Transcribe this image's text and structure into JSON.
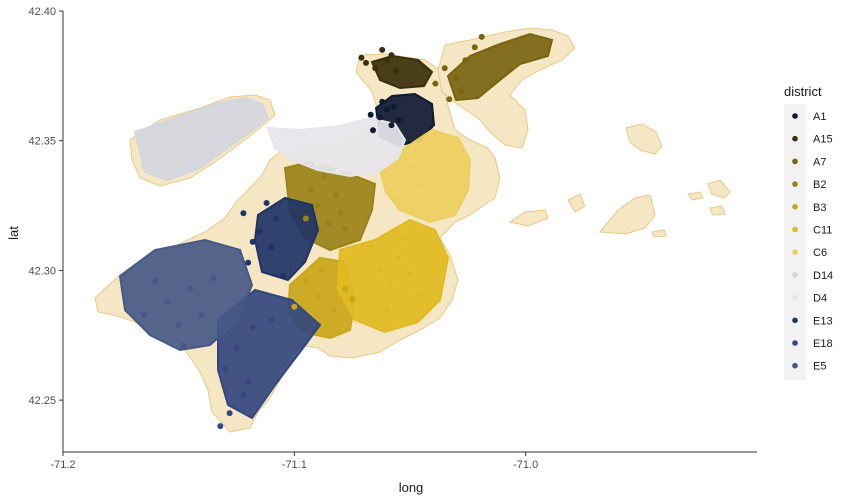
{
  "chart_data": {
    "type": "scatter",
    "title": "",
    "xlabel": "long",
    "ylabel": "lat",
    "xlim": [
      -71.2,
      -70.9
    ],
    "ylim": [
      42.23,
      42.4
    ],
    "x_ticks": [
      -71.2,
      -71.1,
      -71.0
    ],
    "x_tick_labels": [
      "-71.2",
      "-71.1",
      "-71.0"
    ],
    "y_ticks": [
      42.25,
      42.3,
      42.35,
      42.4
    ],
    "y_tick_labels": [
      "42.25",
      "42.30",
      "42.35",
      "42.40"
    ],
    "grid": false,
    "legend_position": "right",
    "legend_title": "district",
    "background_layer": {
      "fill": "#f5e6c4",
      "stroke": "#e8c98a"
    },
    "series": [
      {
        "name": "A1",
        "color": "#0e1a33",
        "points": [
          [
            -71.063,
            42.359
          ],
          [
            -71.06,
            42.362
          ],
          [
            -71.058,
            42.356
          ],
          [
            -71.066,
            42.354
          ],
          [
            -71.055,
            42.358
          ],
          [
            -71.062,
            42.365
          ],
          [
            -71.057,
            42.363
          ],
          [
            -71.067,
            42.36
          ]
        ]
      },
      {
        "name": "A15",
        "color": "#3a2f0b",
        "points": [
          [
            -71.065,
            42.378
          ],
          [
            -71.06,
            42.381
          ],
          [
            -71.056,
            42.377
          ],
          [
            -71.069,
            42.38
          ],
          [
            -71.062,
            42.385
          ],
          [
            -71.058,
            42.383
          ],
          [
            -71.071,
            42.382
          ]
        ]
      },
      {
        "name": "A7",
        "color": "#7a6410",
        "points": [
          [
            -71.035,
            42.378
          ],
          [
            -71.03,
            42.374
          ],
          [
            -71.026,
            42.381
          ],
          [
            -71.039,
            42.372
          ],
          [
            -71.033,
            42.366
          ],
          [
            -71.022,
            42.386
          ],
          [
            -71.019,
            42.39
          ],
          [
            -71.028,
            42.369
          ]
        ]
      },
      {
        "name": "B2",
        "color": "#9a8316",
        "points": [
          [
            -71.09,
            42.325
          ],
          [
            -71.085,
            42.318
          ],
          [
            -71.08,
            42.322
          ],
          [
            -71.093,
            42.331
          ],
          [
            -71.087,
            42.336
          ],
          [
            -71.078,
            42.316
          ],
          [
            -71.095,
            42.32
          ],
          [
            -71.082,
            42.329
          ]
        ]
      },
      {
        "name": "B3",
        "color": "#c9a619",
        "points": [
          [
            -71.09,
            42.29
          ],
          [
            -71.083,
            42.285
          ],
          [
            -71.095,
            42.296
          ],
          [
            -71.078,
            42.293
          ],
          [
            -71.088,
            42.3
          ],
          [
            -71.1,
            42.286
          ],
          [
            -71.075,
            42.289
          ]
        ]
      },
      {
        "name": "C11",
        "color": "#e0bb20",
        "points": [
          [
            -71.063,
            42.3
          ],
          [
            -71.058,
            42.294
          ],
          [
            -71.055,
            42.305
          ],
          [
            -71.05,
            42.299
          ],
          [
            -71.067,
            42.309
          ],
          [
            -71.047,
            42.291
          ],
          [
            -71.06,
            42.285
          ],
          [
            -71.053,
            42.312
          ]
        ]
      },
      {
        "name": "C6",
        "color": "#ebcf5e",
        "points": [
          [
            -71.05,
            42.34
          ],
          [
            -71.045,
            42.333
          ],
          [
            -71.04,
            42.336
          ],
          [
            -71.055,
            42.328
          ],
          [
            -71.035,
            42.33
          ],
          [
            -71.048,
            42.345
          ],
          [
            -71.058,
            42.336
          ]
        ]
      },
      {
        "name": "D14",
        "color": "#d3d6de",
        "points": [
          [
            -71.15,
            42.35
          ],
          [
            -71.14,
            42.353
          ],
          [
            -71.133,
            42.349
          ],
          [
            -71.158,
            42.348
          ],
          [
            -71.145,
            42.342
          ],
          [
            -71.165,
            42.34
          ],
          [
            -71.125,
            42.355
          ],
          [
            -71.155,
            42.337
          ]
        ]
      },
      {
        "name": "D4",
        "color": "#e6e6ea",
        "points": [
          [
            -71.085,
            42.345
          ],
          [
            -71.078,
            42.348
          ],
          [
            -71.09,
            42.341
          ],
          [
            -71.072,
            42.343
          ],
          [
            -71.095,
            42.347
          ],
          [
            -71.081,
            42.338
          ],
          [
            -71.068,
            42.346
          ]
        ]
      },
      {
        "name": "E13",
        "color": "#1f3466",
        "points": [
          [
            -71.115,
            42.315
          ],
          [
            -71.11,
            42.309
          ],
          [
            -71.108,
            42.32
          ],
          [
            -71.12,
            42.303
          ],
          [
            -71.112,
            42.326
          ],
          [
            -71.105,
            42.298
          ],
          [
            -71.118,
            42.311
          ],
          [
            -71.122,
            42.322
          ]
        ]
      },
      {
        "name": "E18",
        "color": "#33487e",
        "points": [
          [
            -71.125,
            42.27
          ],
          [
            -71.13,
            42.262
          ],
          [
            -71.122,
            42.252
          ],
          [
            -71.128,
            42.245
          ],
          [
            -71.118,
            42.278
          ],
          [
            -71.11,
            42.281
          ],
          [
            -71.132,
            42.24
          ],
          [
            -71.12,
            42.257
          ]
        ]
      },
      {
        "name": "E5",
        "color": "#465985",
        "points": [
          [
            -71.155,
            42.288
          ],
          [
            -71.15,
            42.279
          ],
          [
            -71.145,
            42.293
          ],
          [
            -71.16,
            42.296
          ],
          [
            -71.14,
            42.283
          ],
          [
            -71.135,
            42.297
          ],
          [
            -71.148,
            42.271
          ],
          [
            -71.165,
            42.283
          ]
        ]
      }
    ]
  }
}
